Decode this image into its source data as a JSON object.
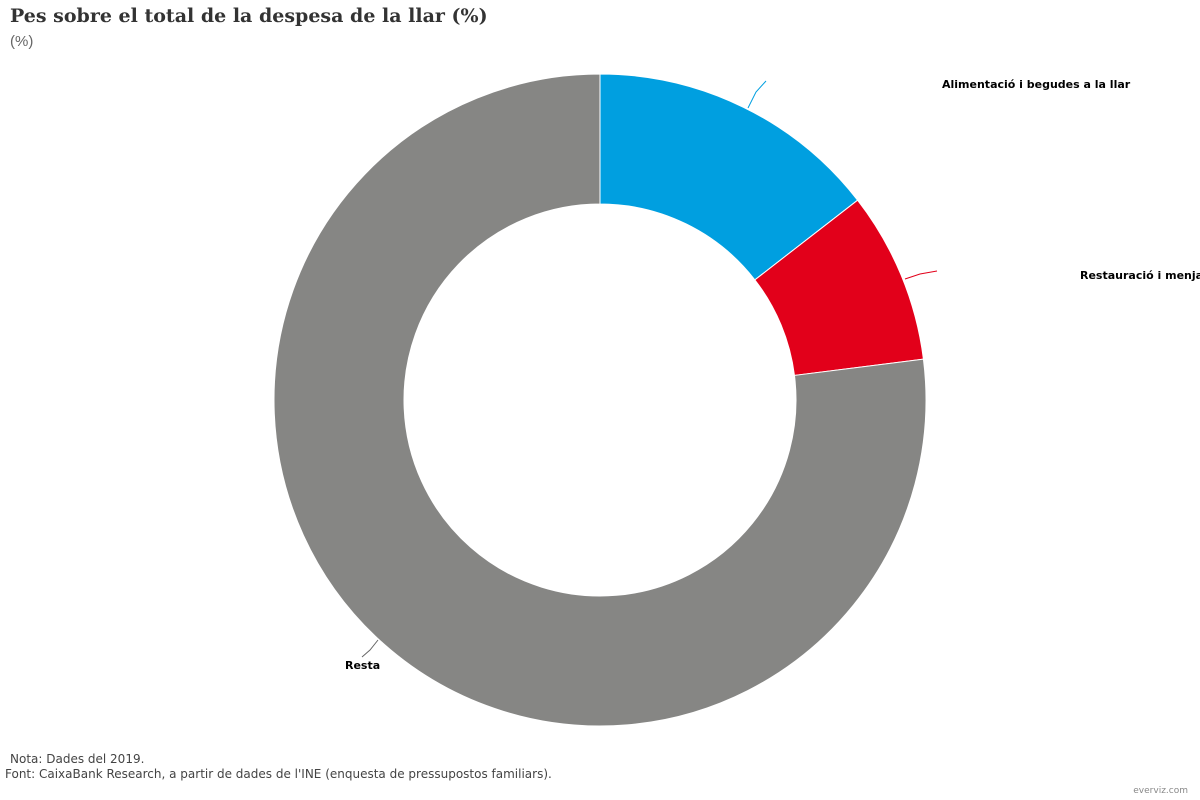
{
  "header": {
    "title": "Pes sobre el total de la despesa de la llar (%)",
    "subtitle": "(%)"
  },
  "footer": {
    "note": "Nota: Dades del 2019.",
    "source": "Font: CaixaBank Research, a partir de dades de l'INE (enquesta de pressupostos familiars).",
    "credit": "everviz.com"
  },
  "chart_data": {
    "type": "pie",
    "variant": "donut",
    "title": "Pes sobre el total de la despesa de la llar (%)",
    "subtitle": "(%)",
    "legend": "none",
    "categories": [
      "Alimentació i begudes a la llar",
      "Restauració i menjadors",
      "Resta"
    ],
    "values": [
      14.5,
      8.5,
      77.0
    ],
    "colors": [
      "#009FE0",
      "#E2001A",
      "#868684"
    ],
    "labels": [
      "Alimentació i begudes a la llar",
      "Restauració i menjadors",
      "Resta"
    ]
  }
}
